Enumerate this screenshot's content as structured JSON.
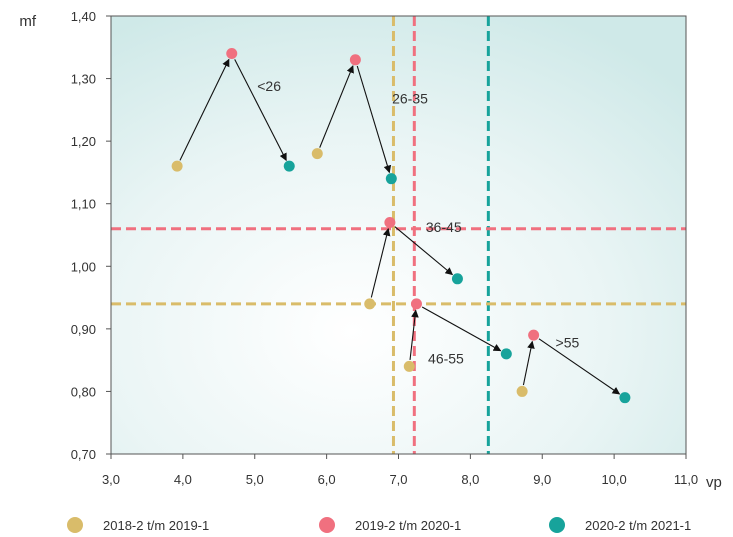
{
  "chart_data": {
    "type": "scatter",
    "title": "",
    "xlabel": "vp",
    "ylabel": "mf",
    "xlim": [
      3.0,
      11.0
    ],
    "ylim": [
      0.7,
      1.4
    ],
    "xticks": [
      3.0,
      4.0,
      5.0,
      6.0,
      7.0,
      8.0,
      9.0,
      10.0,
      11.0
    ],
    "yticks": [
      0.7,
      0.8,
      0.9,
      1.0,
      1.1,
      1.2,
      1.3,
      1.4
    ],
    "xtick_labels": [
      "3,0",
      "4,0",
      "5,0",
      "6,0",
      "7,0",
      "8,0",
      "9,0",
      "10,0",
      "11,0"
    ],
    "ytick_labels": [
      "0,70",
      "0,80",
      "0,90",
      "1,00",
      "1,10",
      "1,20",
      "1,30",
      "1,40"
    ],
    "grid": false,
    "legend_position": "bottom",
    "series": [
      {
        "name": "2018-2 t/m 2019-1",
        "color": "#d9bc6a"
      },
      {
        "name": "2019-2 t/m 2020-1",
        "color": "#f0707f"
      },
      {
        "name": "2020-2 t/m 2021-1",
        "color": "#17a39b"
      }
    ],
    "groups": [
      {
        "label": "<26",
        "label_x": 5.2,
        "label_y": 1.28,
        "points": [
          [
            3.92,
            1.16
          ],
          [
            4.68,
            1.34
          ],
          [
            5.48,
            1.16
          ]
        ]
      },
      {
        "label": "26-35",
        "label_x": 7.16,
        "label_y": 1.26,
        "points": [
          [
            5.87,
            1.18
          ],
          [
            6.4,
            1.33
          ],
          [
            6.9,
            1.14
          ]
        ]
      },
      {
        "label": "36-45",
        "label_x": 7.63,
        "label_y": 1.055,
        "points": [
          [
            6.6,
            0.94
          ],
          [
            6.88,
            1.07
          ],
          [
            7.82,
            0.98
          ]
        ]
      },
      {
        "label": "46-55",
        "label_x": 7.66,
        "label_y": 0.845,
        "points": [
          [
            7.15,
            0.84
          ],
          [
            7.25,
            0.94
          ],
          [
            8.5,
            0.86
          ]
        ]
      },
      {
        "label": ">55",
        "label_x": 9.35,
        "label_y": 0.87,
        "points": [
          [
            8.72,
            0.8
          ],
          [
            8.88,
            0.89
          ],
          [
            10.15,
            0.79
          ]
        ]
      }
    ],
    "reference_lines": [
      {
        "orientation": "vertical",
        "value": 6.93,
        "color": "#d9bc6a"
      },
      {
        "orientation": "vertical",
        "value": 7.22,
        "color": "#f0707f"
      },
      {
        "orientation": "vertical",
        "value": 8.25,
        "color": "#17a39b"
      },
      {
        "orientation": "horizontal",
        "value": 1.06,
        "color": "#f0707f"
      },
      {
        "orientation": "horizontal",
        "value": 0.94,
        "color": "#d9bc6a"
      }
    ]
  }
}
